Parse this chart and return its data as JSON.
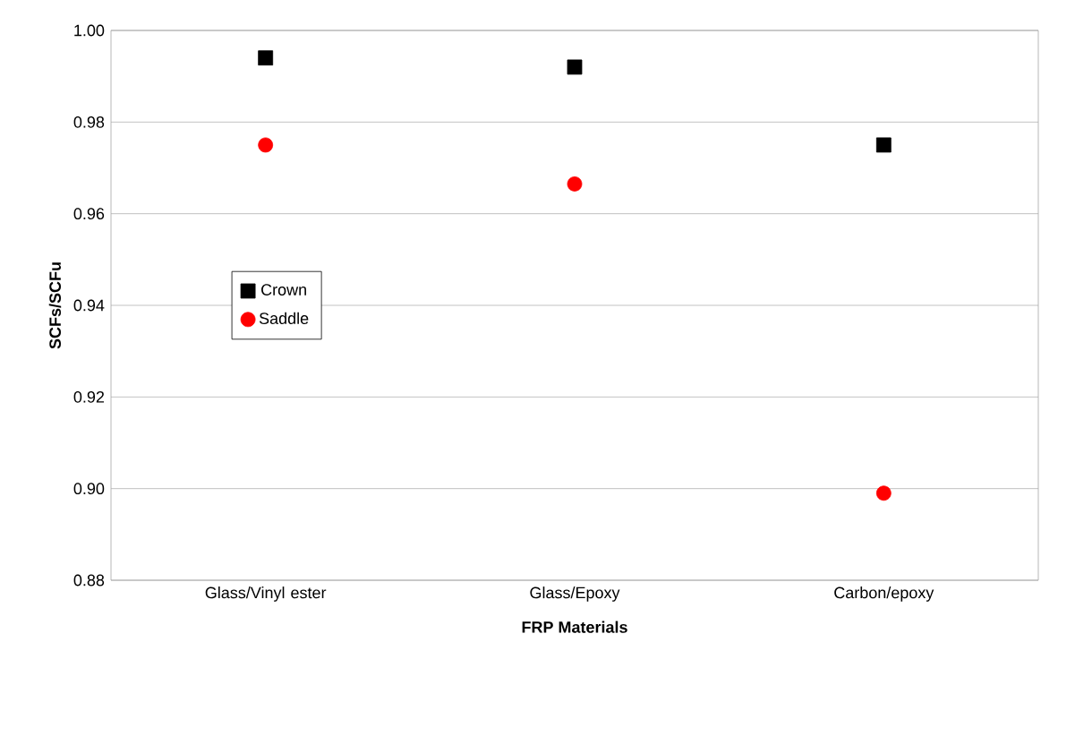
{
  "chart_data": {
    "type": "scatter",
    "xlabel": "FRP Materials",
    "ylabel": "SCFs/SCFu",
    "categories": [
      "Glass/Vinyl ester",
      "Glass/Epoxy",
      "Carbon/epoxy"
    ],
    "series": [
      {
        "name": "Crown",
        "color": "#000000",
        "marker": "square",
        "values": [
          0.994,
          0.992,
          0.975
        ]
      },
      {
        "name": "Saddle",
        "color": "#ff0000",
        "marker": "circle",
        "values": [
          0.975,
          0.9665,
          0.899
        ]
      }
    ],
    "ylim": [
      0.88,
      1.0
    ],
    "yticks": [
      {
        "value": 0.88,
        "label": "0.88"
      },
      {
        "value": 0.9,
        "label": "0.90"
      },
      {
        "value": 0.92,
        "label": "0.92"
      },
      {
        "value": 0.94,
        "label": "0.94"
      },
      {
        "value": 0.96,
        "label": "0.96"
      },
      {
        "value": 0.98,
        "label": "0.98"
      },
      {
        "value": 1.0,
        "label": "1.00"
      }
    ],
    "grid": "y",
    "legend": "left"
  }
}
